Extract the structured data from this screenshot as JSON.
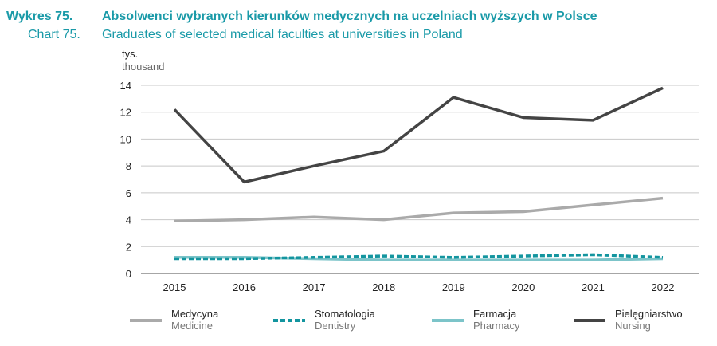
{
  "header": {
    "label_pl": "Wykres 75.",
    "label_en": "Chart 75.",
    "title_pl": "Absolwenci wybranych kierunków medycznych na uczelniach wyższych w Polsce",
    "title_en": "Graduates of selected medical faculties at universities in Poland"
  },
  "chart_data": {
    "type": "line",
    "title": "Graduates of selected medical faculties at universities in Poland",
    "ylabel_pl": "tys.",
    "ylabel_en": "thousand",
    "x": [
      "2015",
      "2016",
      "2017",
      "2018",
      "2019",
      "2020",
      "2021",
      "2022"
    ],
    "ylim": [
      0,
      14
    ],
    "yticks": [
      "0",
      "2",
      "4",
      "6",
      "8",
      "10",
      "12",
      "14"
    ],
    "grid": true,
    "legend_position": "bottom",
    "series": [
      {
        "name_pl": "Medycyna",
        "name_en": "Medicine",
        "color": "#aaaaaa",
        "dash": "solid",
        "values": [
          3.9,
          4.0,
          4.2,
          4.0,
          4.5,
          4.6,
          5.1,
          5.6
        ]
      },
      {
        "name_pl": "Stomatologia",
        "name_en": "Dentistry",
        "color": "#13959f",
        "dash": "dashed",
        "values": [
          1.1,
          1.1,
          1.2,
          1.3,
          1.2,
          1.3,
          1.4,
          1.2
        ]
      },
      {
        "name_pl": "Farmacja",
        "name_en": "Pharmacy",
        "color": "#7cc4c9",
        "dash": "solid",
        "values": [
          1.2,
          1.2,
          1.1,
          1.0,
          1.0,
          1.0,
          1.0,
          1.1
        ]
      },
      {
        "name_pl": "Pielęgniarstwo",
        "name_en": "Nursing",
        "color": "#444444",
        "dash": "solid",
        "values": [
          12.2,
          6.8,
          8.0,
          9.1,
          13.1,
          11.6,
          11.4,
          13.8
        ]
      }
    ]
  }
}
